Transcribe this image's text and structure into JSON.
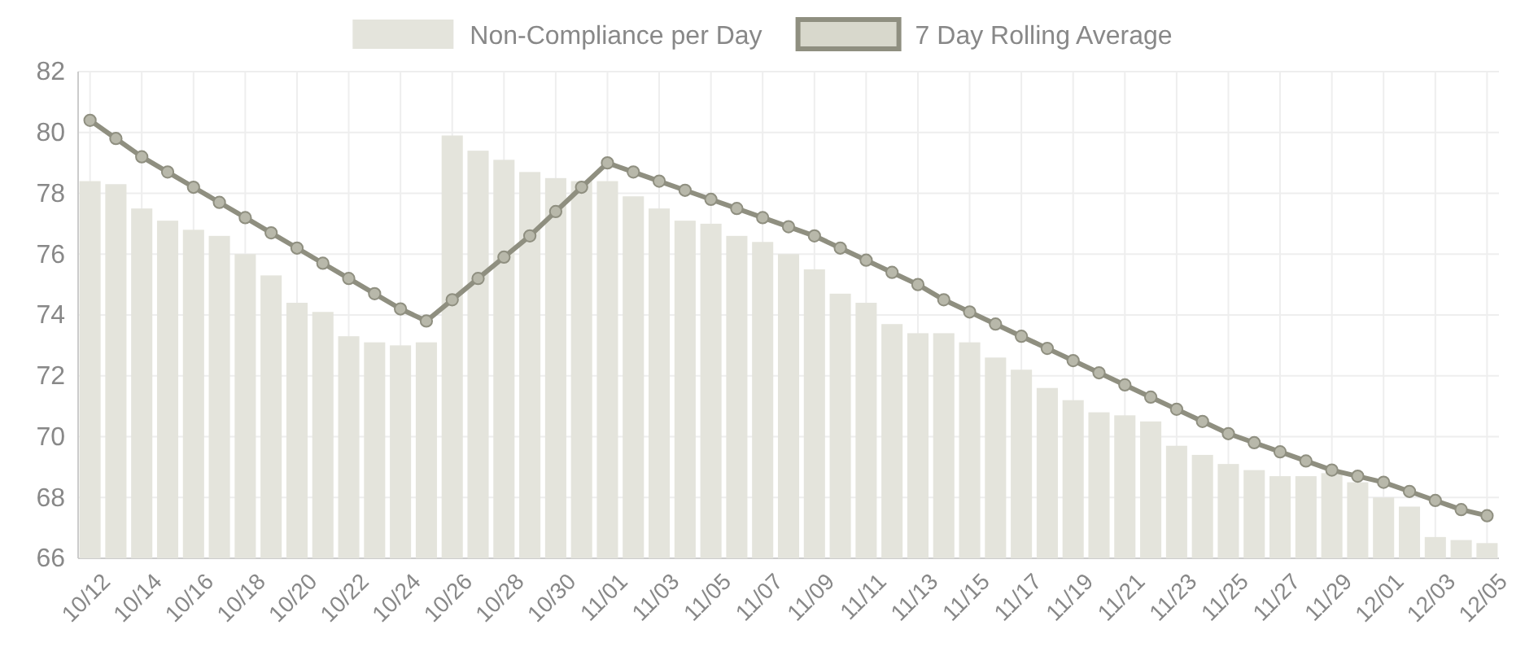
{
  "chart_data": {
    "type": "bar",
    "categories": [
      "10/12",
      null,
      "10/14",
      null,
      "10/16",
      null,
      "10/18",
      null,
      "10/20",
      null,
      "10/22",
      null,
      "10/24",
      null,
      "10/26",
      null,
      "10/28",
      null,
      "10/30",
      null,
      "11/01",
      null,
      "11/03",
      null,
      "11/05",
      null,
      "11/07",
      null,
      "11/09",
      null,
      "11/11",
      null,
      "11/13",
      null,
      "11/15",
      null,
      "11/17",
      null,
      "11/19",
      null,
      "11/21",
      null,
      "11/23",
      null,
      "11/25",
      null,
      "11/27",
      null,
      "11/29",
      null,
      "12/01",
      null,
      "12/03",
      null,
      "12/05"
    ],
    "series": [
      {
        "name": "Non-Compliance per Day",
        "color": "#e4e4dc",
        "values": [
          78.4,
          78.3,
          77.5,
          77.1,
          76.8,
          76.6,
          76.0,
          75.3,
          74.4,
          74.1,
          73.3,
          73.1,
          73.0,
          73.1,
          79.9,
          79.4,
          79.1,
          78.7,
          78.5,
          78.4,
          78.4,
          77.9,
          77.5,
          77.1,
          77.0,
          76.6,
          76.4,
          76.0,
          75.5,
          74.7,
          74.4,
          73.7,
          73.4,
          73.4,
          73.1,
          72.6,
          72.2,
          71.6,
          71.2,
          70.8,
          70.7,
          70.5,
          69.7,
          69.4,
          69.1,
          68.9,
          68.7,
          68.7,
          68.8,
          68.5,
          68.0,
          67.7,
          66.7,
          66.6,
          66.5
        ]
      },
      {
        "name": "7 Day Rolling Average",
        "type": "line",
        "color": "#8f8f80",
        "marker": "circle",
        "values": [
          80.4,
          79.8,
          79.2,
          78.7,
          78.2,
          77.7,
          77.2,
          76.7,
          76.2,
          75.7,
          75.2,
          74.7,
          74.2,
          73.8,
          74.5,
          75.2,
          75.9,
          76.6,
          77.4,
          78.2,
          79.0,
          78.7,
          78.4,
          78.1,
          77.8,
          77.5,
          77.2,
          76.9,
          76.6,
          76.2,
          75.8,
          75.4,
          75.0,
          74.5,
          74.1,
          73.7,
          73.3,
          72.9,
          72.5,
          72.1,
          71.7,
          71.3,
          70.9,
          70.5,
          70.1,
          69.8,
          69.5,
          69.2,
          68.9,
          68.7,
          68.5,
          68.2,
          67.9,
          67.6,
          67.4
        ]
      }
    ],
    "ylim": [
      66,
      82
    ],
    "yticks": [
      66,
      68,
      70,
      72,
      74,
      76,
      78,
      80,
      82
    ],
    "grid": true,
    "legend": "top"
  }
}
